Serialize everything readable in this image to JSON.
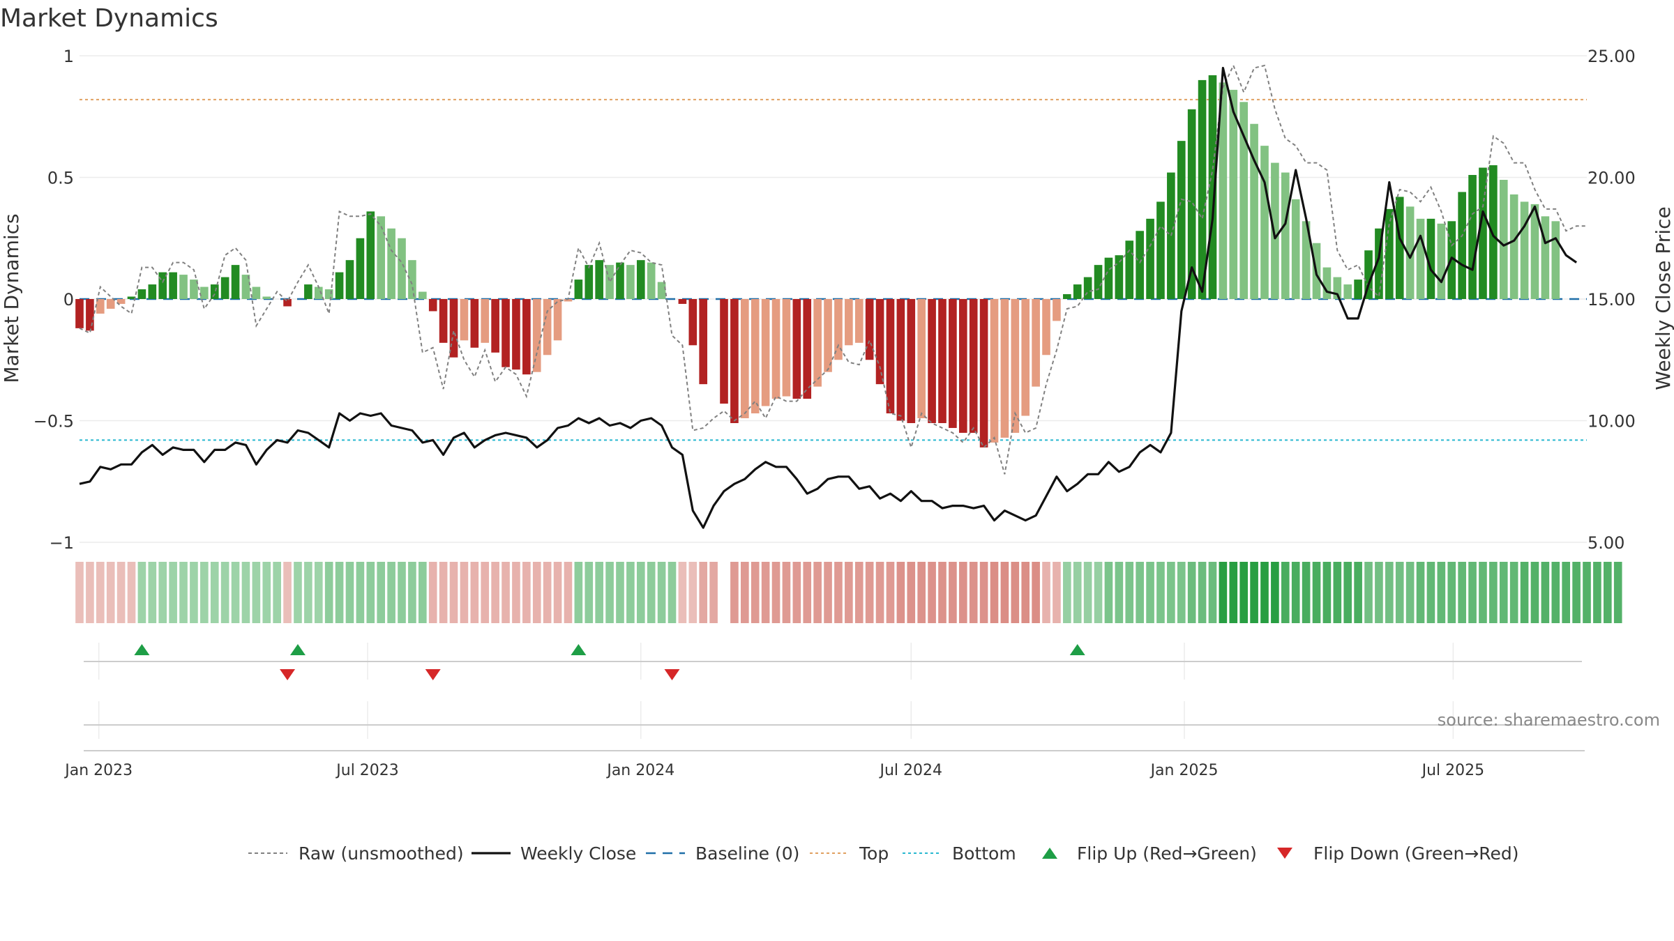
{
  "chart_data": {
    "type": "bar",
    "title": "Market Dynamics",
    "ylabel_left": "Market Dynamics",
    "ylabel_right": "Weekly Close Price",
    "ylim_left": [
      -1,
      1
    ],
    "ylim_right": [
      5,
      25
    ],
    "left_ticks": [
      {
        "v": 1,
        "label": "1"
      },
      {
        "v": 0.5,
        "label": "0.5"
      },
      {
        "v": 0,
        "label": "0"
      },
      {
        "v": -0.5,
        "label": "−0.5"
      },
      {
        "v": -1,
        "label": "−1"
      }
    ],
    "right_ticks": [
      {
        "v": 25,
        "label": "25.00"
      },
      {
        "v": 20,
        "label": "20.00"
      },
      {
        "v": 15,
        "label": "15.00"
      },
      {
        "v": 10,
        "label": "10.00"
      },
      {
        "v": 5,
        "label": "5.00"
      }
    ],
    "x_start": "2022-12-19",
    "x_end": "2025-09-29",
    "x_ticks": [
      {
        "date": "2023-01-01",
        "label": "Jan 2023"
      },
      {
        "date": "2023-07-01",
        "label": "Jul 2023"
      },
      {
        "date": "2024-01-01",
        "label": "Jan 2024"
      },
      {
        "date": "2024-07-01",
        "label": "Jul 2024"
      },
      {
        "date": "2025-01-01",
        "label": "Jan 2025"
      },
      {
        "date": "2025-07-01",
        "label": "Jul 2025"
      }
    ],
    "top_line": 0.82,
    "bottom_line": -0.58,
    "baseline": 0,
    "first_week": "2022-12-19",
    "bars": [
      -0.12,
      -0.13,
      -0.06,
      -0.04,
      -0.02,
      0.01,
      0.04,
      0.06,
      0.11,
      0.11,
      0.1,
      0.08,
      0.05,
      0.06,
      0.09,
      0.14,
      0.1,
      0.05,
      0.01,
      0.0,
      -0.03,
      0.0,
      0.06,
      0.05,
      0.04,
      0.11,
      0.16,
      0.25,
      0.36,
      0.34,
      0.29,
      0.25,
      0.16,
      0.03,
      -0.05,
      -0.18,
      -0.24,
      -0.17,
      -0.2,
      -0.18,
      -0.22,
      -0.28,
      -0.29,
      -0.31,
      -0.3,
      -0.23,
      -0.17,
      -0.01,
      0.08,
      0.14,
      0.16,
      0.14,
      0.15,
      0.14,
      0.16,
      0.15,
      0.07,
      0.0,
      -0.02,
      -0.19,
      -0.35,
      0.0,
      -0.43,
      -0.51,
      -0.49,
      -0.47,
      -0.44,
      -0.41,
      -0.4,
      -0.41,
      -0.41,
      -0.36,
      -0.3,
      -0.25,
      -0.19,
      -0.18,
      -0.25,
      -0.35,
      -0.47,
      -0.5,
      -0.51,
      -0.49,
      -0.51,
      -0.51,
      -0.53,
      -0.55,
      -0.55,
      -0.61,
      -0.59,
      -0.57,
      -0.55,
      -0.48,
      -0.36,
      -0.23,
      -0.09,
      0.02,
      0.06,
      0.09,
      0.14,
      0.17,
      0.18,
      0.24,
      0.28,
      0.33,
      0.4,
      0.52,
      0.65,
      0.78,
      0.9,
      0.92,
      0.89,
      0.86,
      0.81,
      0.72,
      0.63,
      0.56,
      0.52,
      0.41,
      0.32,
      0.23,
      0.13,
      0.09,
      0.06,
      0.08,
      0.2,
      0.29,
      0.37,
      0.42,
      0.38,
      0.33,
      0.33,
      0.31,
      0.32,
      0.44,
      0.51,
      0.54,
      0.55,
      0.49,
      0.43,
      0.4,
      0.39,
      0.34,
      0.32
    ],
    "raw": [
      -0.12,
      -0.14,
      0.05,
      0.01,
      -0.03,
      -0.06,
      0.13,
      0.13,
      0.07,
      0.15,
      0.15,
      0.12,
      -0.04,
      0.02,
      0.18,
      0.21,
      0.16,
      -0.11,
      -0.04,
      0.03,
      -0.01,
      0.07,
      0.14,
      0.05,
      -0.06,
      0.36,
      0.34,
      0.34,
      0.35,
      0.3,
      0.2,
      0.15,
      0.06,
      -0.22,
      -0.2,
      -0.37,
      -0.13,
      -0.25,
      -0.32,
      -0.21,
      -0.34,
      -0.28,
      -0.31,
      -0.4,
      -0.22,
      -0.05,
      -0.01,
      0.0,
      0.21,
      0.13,
      0.23,
      0.07,
      0.14,
      0.2,
      0.19,
      0.15,
      0.14,
      -0.15,
      -0.19,
      -0.54,
      -0.53,
      -0.49,
      -0.46,
      -0.5,
      -0.47,
      -0.42,
      -0.49,
      -0.4,
      -0.42,
      -0.42,
      -0.37,
      -0.33,
      -0.29,
      -0.19,
      -0.26,
      -0.27,
      -0.17,
      -0.28,
      -0.47,
      -0.48,
      -0.61,
      -0.47,
      -0.51,
      -0.53,
      -0.55,
      -0.59,
      -0.53,
      -0.61,
      -0.57,
      -0.72,
      -0.47,
      -0.55,
      -0.53,
      -0.35,
      -0.21,
      -0.04,
      -0.03,
      0.03,
      0.04,
      0.12,
      0.15,
      0.2,
      0.15,
      0.22,
      0.3,
      0.26,
      0.41,
      0.4,
      0.33,
      0.53,
      0.87,
      0.96,
      0.85,
      0.95,
      0.96,
      0.78,
      0.66,
      0.63,
      0.56,
      0.56,
      0.53,
      0.2,
      0.12,
      0.14,
      0.05,
      0.01,
      0.31,
      0.45,
      0.44,
      0.4,
      0.46,
      0.36,
      0.22,
      0.26,
      0.35,
      0.38,
      0.67,
      0.64,
      0.56,
      0.56,
      0.45,
      0.37,
      0.37,
      0.28,
      0.3,
      0.3
    ],
    "close": [
      7.4,
      7.5,
      8.1,
      8.0,
      8.2,
      8.2,
      8.7,
      9.0,
      8.6,
      8.9,
      8.8,
      8.8,
      8.3,
      8.8,
      8.8,
      9.1,
      9.0,
      8.2,
      8.8,
      9.2,
      9.1,
      9.6,
      9.5,
      9.2,
      8.9,
      10.3,
      10.0,
      10.3,
      10.2,
      10.3,
      9.8,
      9.7,
      9.6,
      9.1,
      9.2,
      8.6,
      9.3,
      9.5,
      8.9,
      9.2,
      9.4,
      9.5,
      9.4,
      9.3,
      8.9,
      9.2,
      9.7,
      9.8,
      10.1,
      9.9,
      10.1,
      9.8,
      9.9,
      9.7,
      10.0,
      10.1,
      9.8,
      8.9,
      8.6,
      6.3,
      5.6,
      6.5,
      7.1,
      7.4,
      7.6,
      8.0,
      8.3,
      8.1,
      8.1,
      7.6,
      7.0,
      7.2,
      7.6,
      7.7,
      7.7,
      7.2,
      7.3,
      6.8,
      7.0,
      6.7,
      7.1,
      6.7,
      6.7,
      6.4,
      6.5,
      6.5,
      6.4,
      6.5,
      5.9,
      6.3,
      6.1,
      5.9,
      6.1,
      6.9,
      7.7,
      7.1,
      7.4,
      7.8,
      7.8,
      8.3,
      7.9,
      8.1,
      8.7,
      9.0,
      8.7,
      9.5,
      14.5,
      16.3,
      15.3,
      18.3,
      24.5,
      22.7,
      21.7,
      20.7,
      19.8,
      17.5,
      18.1,
      20.3,
      18.3,
      16.0,
      15.3,
      15.2,
      14.2,
      14.2,
      15.6,
      16.7,
      19.8,
      17.5,
      16.7,
      17.6,
      16.2,
      15.7,
      16.7,
      16.4,
      16.2,
      18.6,
      17.6,
      17.2,
      17.4,
      18.0,
      18.8,
      17.3,
      17.5,
      16.8,
      16.5
    ],
    "heat": [
      -0.22,
      -0.22,
      -0.22,
      -0.22,
      -0.22,
      -0.22,
      0.25,
      0.25,
      0.25,
      0.25,
      0.25,
      0.25,
      0.25,
      0.25,
      0.25,
      0.25,
      0.25,
      0.25,
      0.25,
      0.25,
      -0.22,
      0.25,
      0.25,
      0.25,
      0.35,
      0.35,
      0.35,
      0.35,
      0.35,
      0.35,
      0.35,
      0.35,
      0.35,
      0.35,
      -0.32,
      -0.32,
      -0.32,
      -0.32,
      -0.32,
      -0.32,
      -0.32,
      -0.32,
      -0.32,
      -0.32,
      -0.32,
      -0.32,
      -0.32,
      -0.32,
      0.35,
      0.35,
      0.35,
      0.35,
      0.35,
      0.35,
      0.35,
      0.35,
      0.35,
      0.35,
      -0.22,
      -0.22,
      -0.4,
      -0.4,
      null,
      -0.52,
      -0.52,
      -0.52,
      -0.52,
      -0.52,
      -0.52,
      -0.52,
      -0.52,
      -0.52,
      -0.52,
      -0.52,
      -0.52,
      -0.52,
      -0.52,
      -0.52,
      -0.52,
      -0.58,
      -0.58,
      -0.58,
      -0.58,
      -0.58,
      -0.58,
      -0.58,
      -0.58,
      -0.58,
      -0.62,
      -0.62,
      -0.62,
      -0.62,
      -0.62,
      -0.32,
      -0.32,
      0.3,
      0.3,
      0.3,
      0.3,
      0.45,
      0.45,
      0.45,
      0.45,
      0.45,
      0.45,
      0.45,
      0.45,
      0.55,
      0.55,
      0.55,
      0.95,
      0.95,
      0.95,
      0.95,
      0.95,
      0.95,
      0.75,
      0.75,
      0.75,
      0.75,
      0.75,
      0.75,
      0.75,
      0.75,
      0.5,
      0.5,
      0.5,
      0.5,
      0.5,
      0.6,
      0.6,
      0.6,
      0.6,
      0.6,
      0.6,
      0.6,
      0.6,
      0.6,
      0.6,
      0.7,
      0.7,
      0.7,
      0.7,
      0.7,
      0.7,
      0.7,
      0.7,
      0.7,
      0.7
    ],
    "flips_up": [
      6,
      21,
      48,
      96
    ],
    "flips_down": [
      20,
      34,
      57
    ],
    "source_text": "source: sharemaestro.com",
    "legend": [
      {
        "key": "raw",
        "label": "Raw (unsmoothed)",
        "style": "dashed-gray"
      },
      {
        "key": "close",
        "label": "Weekly Close",
        "style": "solid-black"
      },
      {
        "key": "baseline",
        "label": "Baseline (0)",
        "style": "dashed-blue"
      },
      {
        "key": "top",
        "label": "Top",
        "style": "dotted-orange"
      },
      {
        "key": "bottom",
        "label": "Bottom",
        "style": "dotted-cyan"
      },
      {
        "key": "flipup",
        "label": "Flip Up (Red→Green)",
        "style": "triangle-up"
      },
      {
        "key": "flipdown",
        "label": "Flip Down (Green→Red)",
        "style": "triangle-down"
      }
    ],
    "colors": {
      "bull_strong": "#228b22",
      "bull_weak": "#82c282",
      "bear_strong": "#b22222",
      "bear_weak": "#e59c80",
      "raw": "#808080",
      "close": "#111111",
      "baseline": "#1f6fa8",
      "top": "#e0a060",
      "bottom": "#28b8d0",
      "flip_up": "#1e9e46",
      "flip_down": "#d62728",
      "grid": "#ececec",
      "axis": "#cccccc"
    }
  }
}
